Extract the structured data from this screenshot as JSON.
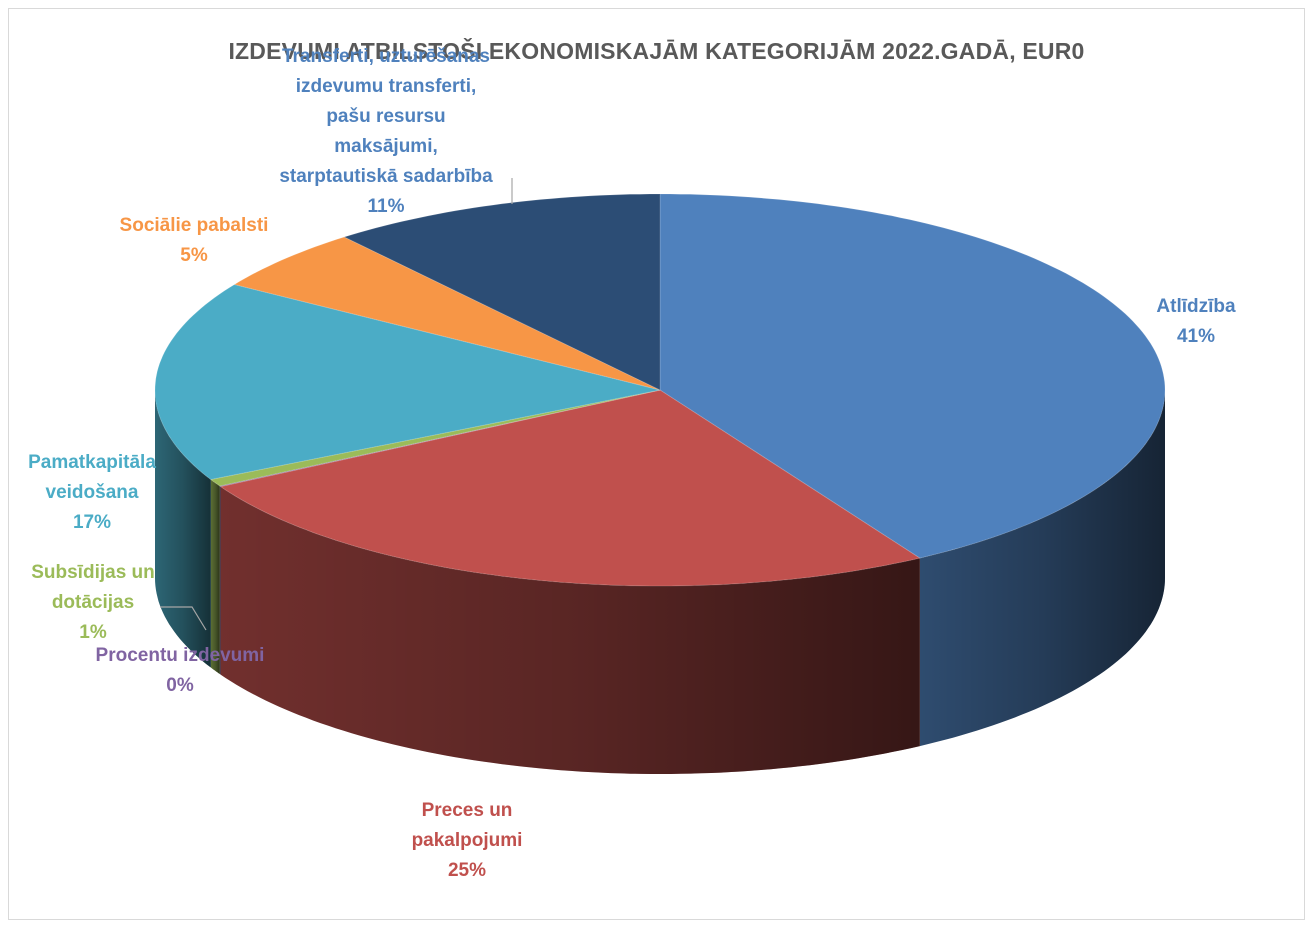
{
  "chart_data": {
    "type": "pie",
    "title": "IZDEVUMI ATBILSTOŠI EKONOMISKAJĀM KATEGORIJĀM 2022.GADĀ, EUR0",
    "style": "3d-pie",
    "slices": [
      {
        "key": "atlidziba",
        "label_lines": [
          "Atlīdzība"
        ],
        "percent_label": "41%",
        "value": 41.4,
        "color": "#4F81BD"
      },
      {
        "key": "preces",
        "label_lines": [
          "Preces un",
          "pakalpojumi"
        ],
        "percent_label": "25%",
        "value": 25.4,
        "color": "#C0504D"
      },
      {
        "key": "procenti",
        "label_lines": [
          "Procentu izdevumi"
        ],
        "percent_label": "0%",
        "value": 0.05,
        "color": "#8064A2"
      },
      {
        "key": "subsidijas",
        "label_lines": [
          "Subsīdijas un",
          "dotācijas"
        ],
        "percent_label": "1%",
        "value": 0.6,
        "color": "#9BBB59"
      },
      {
        "key": "pamatkapitals",
        "label_lines": [
          "Pamatkapitāla",
          "veidošana"
        ],
        "percent_label": "17%",
        "value": 16.6,
        "color": "#4BACC6"
      },
      {
        "key": "socialie",
        "label_lines": [
          "Sociālie pabalsti"
        ],
        "percent_label": "5%",
        "value": 5.2,
        "color": "#F79646"
      },
      {
        "key": "transferti",
        "label_lines": [
          "Transferti, uzturēšanas",
          "izdevumu transferti,",
          "pašu resursu",
          "maksājumi,",
          "starptautiskā sadarbība"
        ],
        "percent_label": "11%",
        "value": 10.75,
        "color": "#2C4D75"
      }
    ]
  }
}
